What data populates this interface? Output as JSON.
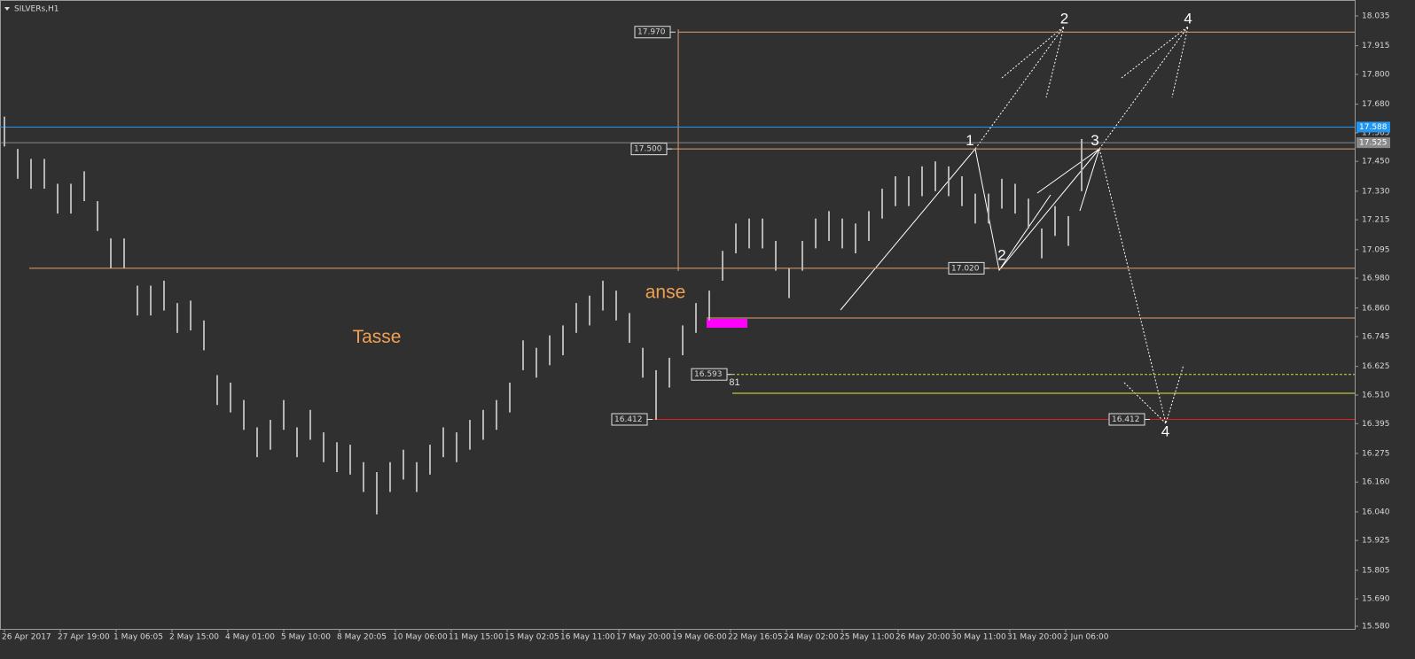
{
  "chart_data": {
    "type": "range-bar",
    "title": "SILVERs,H1",
    "color": "#b4b4b4",
    "ylim": [
      15.58,
      18.035
    ],
    "yticks": [
      18.035,
      17.915,
      {
        "value": 17.8,
        "label": "17.800"
      },
      {
        "value": 17.68,
        "label": "17.680"
      },
      17.565,
      {
        "value": 17.45,
        "label": "17.450"
      },
      {
        "value": 17.33,
        "label": "17.330"
      },
      17.215,
      17.095,
      {
        "value": 16.98,
        "label": "16.980"
      },
      {
        "value": 16.86,
        "label": "16.860"
      },
      16.745,
      16.625,
      {
        "value": 16.51,
        "label": "16.510"
      },
      16.395,
      16.275,
      {
        "value": 16.16,
        "label": "16.160"
      },
      {
        "value": 16.04,
        "label": "16.040"
      },
      15.925,
      15.805,
      {
        "value": 15.69,
        "label": "15.690"
      },
      {
        "value": 15.58,
        "label": "15.580"
      }
    ],
    "xticks": [
      {
        "value": 0,
        "label": "26 Apr 2017"
      },
      {
        "value": 4.2,
        "label": "27 Apr 19:00"
      },
      {
        "value": 8.4,
        "label": "1 May 06:05"
      },
      {
        "value": 12.6,
        "label": "2 May 15:00"
      },
      {
        "value": 16.8,
        "label": "4 May 01:00"
      },
      {
        "value": 21,
        "label": "5 May 10:00"
      },
      {
        "value": 25.2,
        "label": "8 May 20:05"
      },
      {
        "value": 29.4,
        "label": "10 May 06:00"
      },
      {
        "value": 33.6,
        "label": "11 May 15:00"
      },
      {
        "value": 37.8,
        "label": "15 May 02:05"
      },
      {
        "value": 42,
        "label": "16 May 11:00"
      },
      {
        "value": 46.2,
        "label": "17 May 20:00"
      },
      {
        "value": 50.4,
        "label": "19 May 06:00"
      },
      {
        "value": 54.6,
        "label": "22 May 16:05"
      },
      {
        "value": 58.8,
        "label": "24 May 02:00"
      },
      {
        "value": 63,
        "label": "25 May 11:00"
      },
      {
        "value": 67.2,
        "label": "26 May 20:00"
      },
      {
        "value": 71.4,
        "label": "30 May 11:00"
      },
      {
        "value": 75.6,
        "label": "31 May 20:00"
      },
      {
        "value": 79.8,
        "label": "2 Jun 06:00"
      }
    ],
    "high": [
      17.63,
      17.5,
      17.46,
      17.46,
      17.36,
      17.36,
      17.41,
      17.29,
      17.14,
      17.14,
      16.95,
      16.95,
      16.97,
      16.88,
      16.89,
      16.81,
      16.59,
      16.56,
      16.49,
      16.38,
      16.41,
      16.49,
      16.38,
      16.45,
      16.36,
      16.32,
      16.31,
      16.24,
      16.2,
      16.24,
      16.29,
      16.24,
      16.31,
      16.38,
      16.36,
      16.41,
      16.45,
      16.49,
      16.56,
      16.73,
      16.7,
      16.75,
      16.79,
      16.88,
      16.91,
      16.97,
      16.93,
      16.84,
      16.7,
      16.61,
      16.66,
      16.79,
      16.88,
      16.93,
      17.09,
      17.2,
      17.22,
      17.22,
      17.13,
      17.02,
      17.13,
      17.22,
      17.25,
      17.22,
      17.2,
      17.25,
      17.34,
      17.39,
      17.39,
      17.43,
      17.45,
      17.43,
      17.39,
      17.32,
      17.32,
      17.38,
      17.36,
      17.3,
      17.18,
      17.27,
      17.23,
      17.54
    ],
    "low": [
      17.51,
      17.38,
      17.34,
      17.34,
      17.24,
      17.24,
      17.29,
      17.17,
      17.02,
      17.02,
      16.83,
      16.83,
      16.85,
      16.76,
      16.77,
      16.69,
      16.47,
      16.44,
      16.37,
      16.26,
      16.29,
      16.37,
      16.26,
      16.33,
      16.24,
      16.2,
      16.19,
      16.12,
      16.03,
      16.12,
      16.17,
      16.12,
      16.19,
      16.26,
      16.24,
      16.29,
      16.33,
      16.37,
      16.44,
      16.61,
      16.58,
      16.63,
      16.67,
      16.76,
      16.79,
      16.85,
      16.81,
      16.72,
      16.58,
      16.41,
      16.54,
      16.67,
      16.76,
      16.81,
      16.97,
      17.08,
      17.1,
      17.1,
      17.01,
      16.9,
      17.01,
      17.1,
      17.13,
      17.1,
      17.08,
      17.13,
      17.22,
      17.27,
      17.27,
      17.31,
      17.33,
      17.31,
      17.27,
      17.2,
      17.2,
      17.26,
      17.24,
      17.18,
      17.06,
      17.15,
      17.11,
      17.33
    ],
    "levels": [
      {
        "value": 17.97,
        "label": "17.970",
        "color": "#e0a070"
      },
      {
        "value": 17.588,
        "label": "17.588",
        "color": "#2196f3"
      },
      {
        "value": 17.525,
        "label": "17.525",
        "color": "#8a8a8a"
      },
      {
        "value": 17.5,
        "label": "17.500",
        "color": "#e0a070"
      },
      {
        "value": 17.02,
        "label": "17.020",
        "color": "#e0a070"
      },
      {
        "value": 16.82,
        "color": "#e0a070"
      },
      {
        "value": 16.593,
        "label": "16.593",
        "color": "#d8d840"
      },
      {
        "value": 16.517,
        "color": "#e8e840"
      },
      {
        "value": 16.412,
        "label": "16.412",
        "color": "#e02020"
      }
    ],
    "annotations": [
      {
        "text": "Tasse",
        "x": 28,
        "y": 16.74,
        "color": "#f0a050"
      },
      {
        "text": "anse",
        "x": 49.7,
        "y": 16.92,
        "color": "#f0a050"
      },
      {
        "text": "81",
        "x": 54.9,
        "y": 16.56,
        "color": "#e0e0e0"
      },
      {
        "text": "1",
        "x": 72.6,
        "y": 17.53,
        "color": "#ffffff"
      },
      {
        "text": "2",
        "x": 75,
        "y": 17.07,
        "color": "#ffffff"
      },
      {
        "text": "3",
        "x": 82,
        "y": 17.53,
        "color": "#ffffff"
      },
      {
        "text": "4",
        "x": 87.3,
        "y": 16.36,
        "color": "#ffffff"
      },
      {
        "text": "2",
        "x": 79.7,
        "y": 18.02,
        "color": "#ffffff"
      },
      {
        "text": "4",
        "x": 89,
        "y": 18.02,
        "color": "#ffffff"
      }
    ]
  }
}
